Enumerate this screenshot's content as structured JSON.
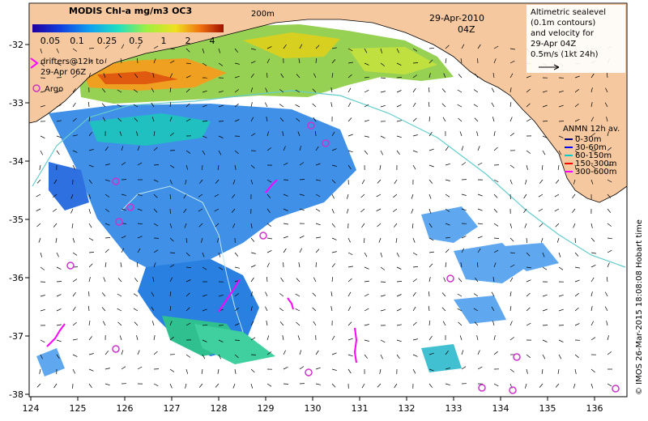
{
  "colorbar": {
    "title": "MODIS Chl-a mg/m3 OC3",
    "ticks": [
      "0.05",
      "0.1",
      "0.25",
      "0.5",
      "1",
      "2",
      "4"
    ]
  },
  "contour_label": "200m",
  "date_label": "29-Apr-2010",
  "time_label": "04Z",
  "altimetry_legend": [
    "Altimetric sealevel",
    "(0.1m contours)",
    "and velocity for",
    "29-Apr 04Z",
    "0.5m/s (1kt 24h)"
  ],
  "drifters_legend": [
    "drifters@12h to",
    "29-Apr 06Z"
  ],
  "argo_label": "Argo",
  "anmn": {
    "title": "ANMN 12h av.",
    "items": [
      {
        "label": "0-30m",
        "color": "#000080"
      },
      {
        "label": "30-60m",
        "color": "#0000ff"
      },
      {
        "label": "60-150m",
        "color": "#00cccc"
      },
      {
        "label": "150-300m",
        "color": "#ff0000"
      },
      {
        "label": "300-600m",
        "color": "#ff00ff"
      }
    ]
  },
  "axes": {
    "x_ticks": [
      "124",
      "125",
      "126",
      "127",
      "128",
      "129",
      "130",
      "131",
      "132",
      "133",
      "134",
      "135",
      "136"
    ],
    "y_ticks": [
      "-32",
      "-33",
      "-34",
      "-35",
      "-36",
      "-37",
      "-38"
    ]
  },
  "credit": "© IMOS 26-Mar-2015 18:08:08 Hobart time",
  "colors": {
    "land": "#f5c8a0",
    "argo": "#cc33cc",
    "drifter": "#ff00ff",
    "current_line": "#66cccc"
  }
}
